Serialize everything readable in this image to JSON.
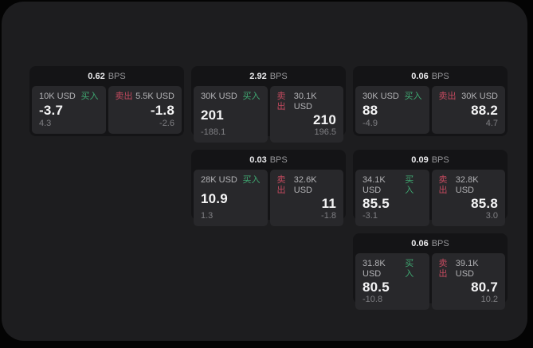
{
  "labels": {
    "bps_unit": "BPS",
    "buy": "买入",
    "sell": "卖出"
  },
  "colors": {
    "page_background": "#040404",
    "panel_background": "#1d1d1f",
    "card_background": "#141416",
    "cell_background": "#28282b",
    "buy_green": "#3fa972",
    "sell_red": "#c44a5f",
    "primary_text": "#f4f4f5",
    "secondary_text": "#b2b2b5",
    "muted_text": "#7f7f83"
  },
  "cards": [
    {
      "bps": "0.62",
      "buy": {
        "size": "10K USD",
        "price": "-3.7",
        "delta": "4.3"
      },
      "sell": {
        "size": "5.5K USD",
        "price": "-1.8",
        "delta": "-2.6"
      }
    },
    {
      "bps": "2.92",
      "buy": {
        "size": "30K USD",
        "price": "201",
        "delta": "-188.1"
      },
      "sell": {
        "size": "30.1K USD",
        "price": "210",
        "delta": "196.5"
      }
    },
    {
      "bps": "0.06",
      "buy": {
        "size": "30K USD",
        "price": "88",
        "delta": "-4.9"
      },
      "sell": {
        "size": "30K USD",
        "price": "88.2",
        "delta": "4.7"
      }
    },
    {
      "bps": "0.03",
      "buy": {
        "size": "28K USD",
        "price": "10.9",
        "delta": "1.3"
      },
      "sell": {
        "size": "32.6K USD",
        "price": "11",
        "delta": "-1.8"
      }
    },
    {
      "bps": "0.09",
      "buy": {
        "size": "34.1K USD",
        "price": "85.5",
        "delta": "-3.1"
      },
      "sell": {
        "size": "32.8K USD",
        "price": "85.8",
        "delta": "3.0"
      }
    },
    {
      "bps": "0.06",
      "buy": {
        "size": "31.8K USD",
        "price": "80.5",
        "delta": "-10.8"
      },
      "sell": {
        "size": "39.1K USD",
        "price": "80.7",
        "delta": "10.2"
      }
    }
  ]
}
